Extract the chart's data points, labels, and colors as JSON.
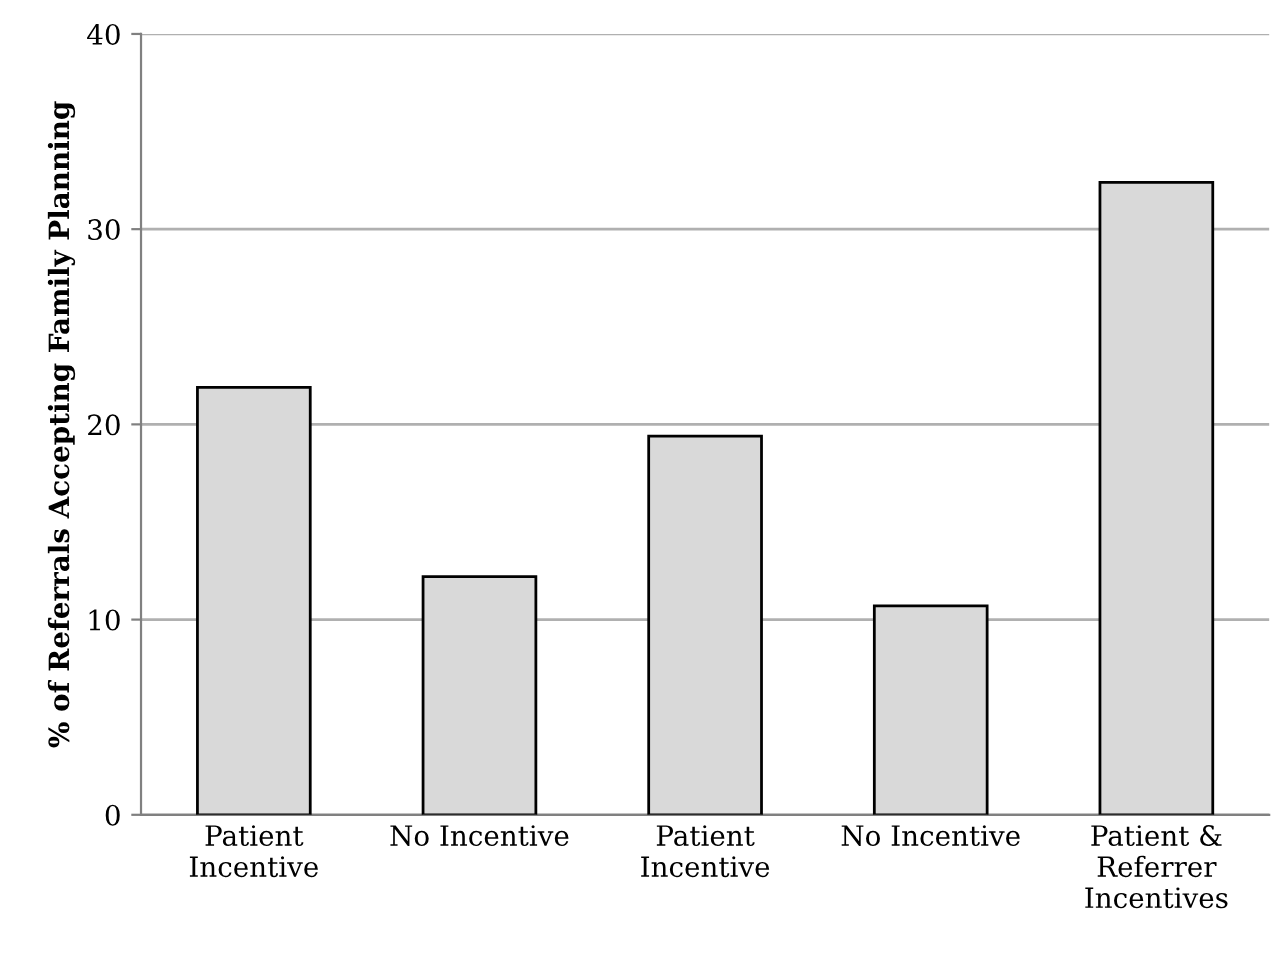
{
  "chart_data": {
    "type": "bar",
    "ylabel": "% of Referrals Accepting Family Planning",
    "categories": [
      "Patient\nIncentive",
      "No Incentive",
      "Patient\nIncentive",
      "No Incentive",
      "Patient &\nReferrer\nIncentives"
    ],
    "values": [
      21.9,
      12.2,
      19.4,
      10.7,
      32.4
    ],
    "color": "#d9d9d9",
    "ylim": [
      0,
      40
    ],
    "yticks": [
      0,
      10,
      20,
      30,
      40
    ],
    "grid": "y",
    "legend": false
  }
}
